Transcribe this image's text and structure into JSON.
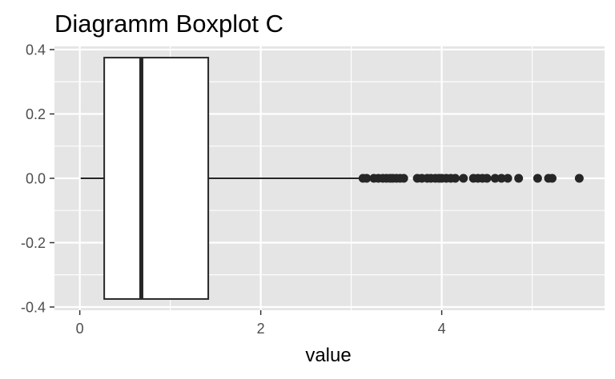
{
  "chart_data": {
    "type": "boxplot",
    "title": "Diagramm Boxplot C",
    "xlabel": "value",
    "ylabel": "",
    "xlim": [
      -0.28,
      5.8
    ],
    "ylim": [
      -0.41,
      0.41
    ],
    "x_ticks": [
      0,
      2,
      4
    ],
    "x_tick_labels": [
      "0",
      "2",
      "4"
    ],
    "y_ticks": [
      0.4,
      0.2,
      0.0,
      -0.2,
      -0.4
    ],
    "y_tick_labels": [
      "0.4",
      "0.2",
      "0.0",
      "-0.2",
      "-0.4"
    ],
    "grid": true,
    "legend": "none",
    "colors": {
      "panel": "#e5e5e5",
      "grid": "#ffffff",
      "box_fill": "#ffffff",
      "box_stroke": "#262626",
      "point": "#262626",
      "tick_label": "#4d4d4d",
      "tick_mark": "#333333"
    },
    "box": {
      "whisker_low": 0.01,
      "q1": 0.27,
      "median": 0.68,
      "q3": 1.42,
      "whisker_high": 3.12,
      "y_center": 0.0,
      "half_height": 0.375
    },
    "outliers": [
      3.13,
      3.17,
      3.25,
      3.3,
      3.35,
      3.39,
      3.43,
      3.46,
      3.5,
      3.54,
      3.58,
      3.73,
      3.78,
      3.84,
      3.88,
      3.93,
      3.97,
      4.0,
      4.05,
      4.1,
      4.15,
      4.24,
      4.35,
      4.4,
      4.45,
      4.5,
      4.59,
      4.66,
      4.73,
      4.85,
      5.06,
      5.18,
      5.22,
      5.52
    ]
  }
}
